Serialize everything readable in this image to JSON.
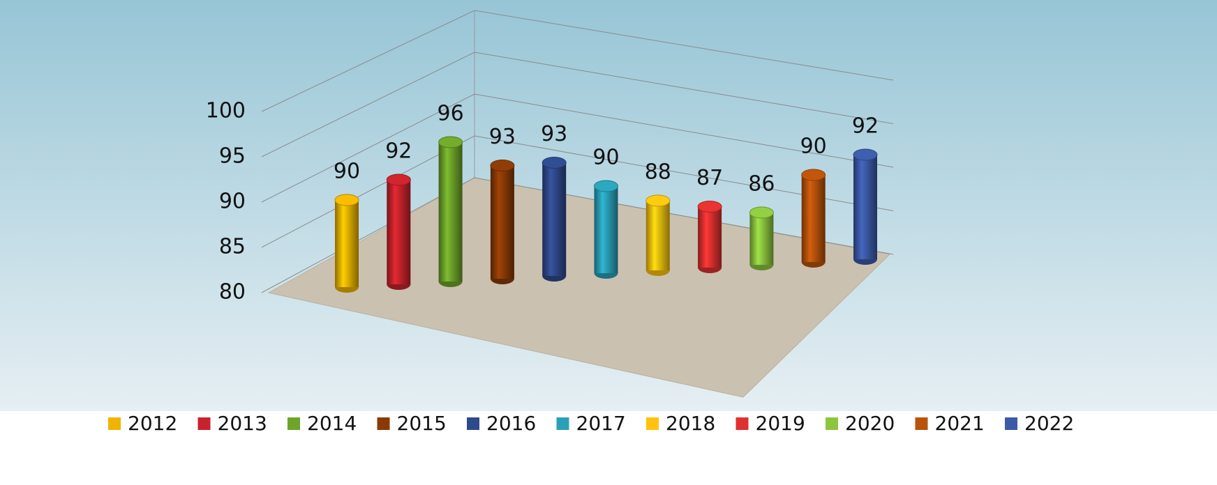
{
  "chart_data": {
    "type": "bar3d",
    "categories": [
      "2012",
      "2013",
      "2014",
      "2015",
      "2016",
      "2017",
      "2018",
      "2019",
      "2020",
      "2021",
      "2022"
    ],
    "values": [
      90,
      92,
      96,
      93,
      93,
      90,
      88,
      87,
      86,
      90,
      92
    ],
    "colors": [
      "#f0b400",
      "#c8232c",
      "#6ea42a",
      "#8b3a06",
      "#2e4a8c",
      "#2aa0b8",
      "#ffc20e",
      "#e0312f",
      "#8cc63f",
      "#b9530b",
      "#3c5aa8"
    ],
    "ylim": [
      80,
      100
    ],
    "yticks": [
      80,
      85,
      90,
      95,
      100
    ],
    "grid": true,
    "legend": "bottom"
  }
}
